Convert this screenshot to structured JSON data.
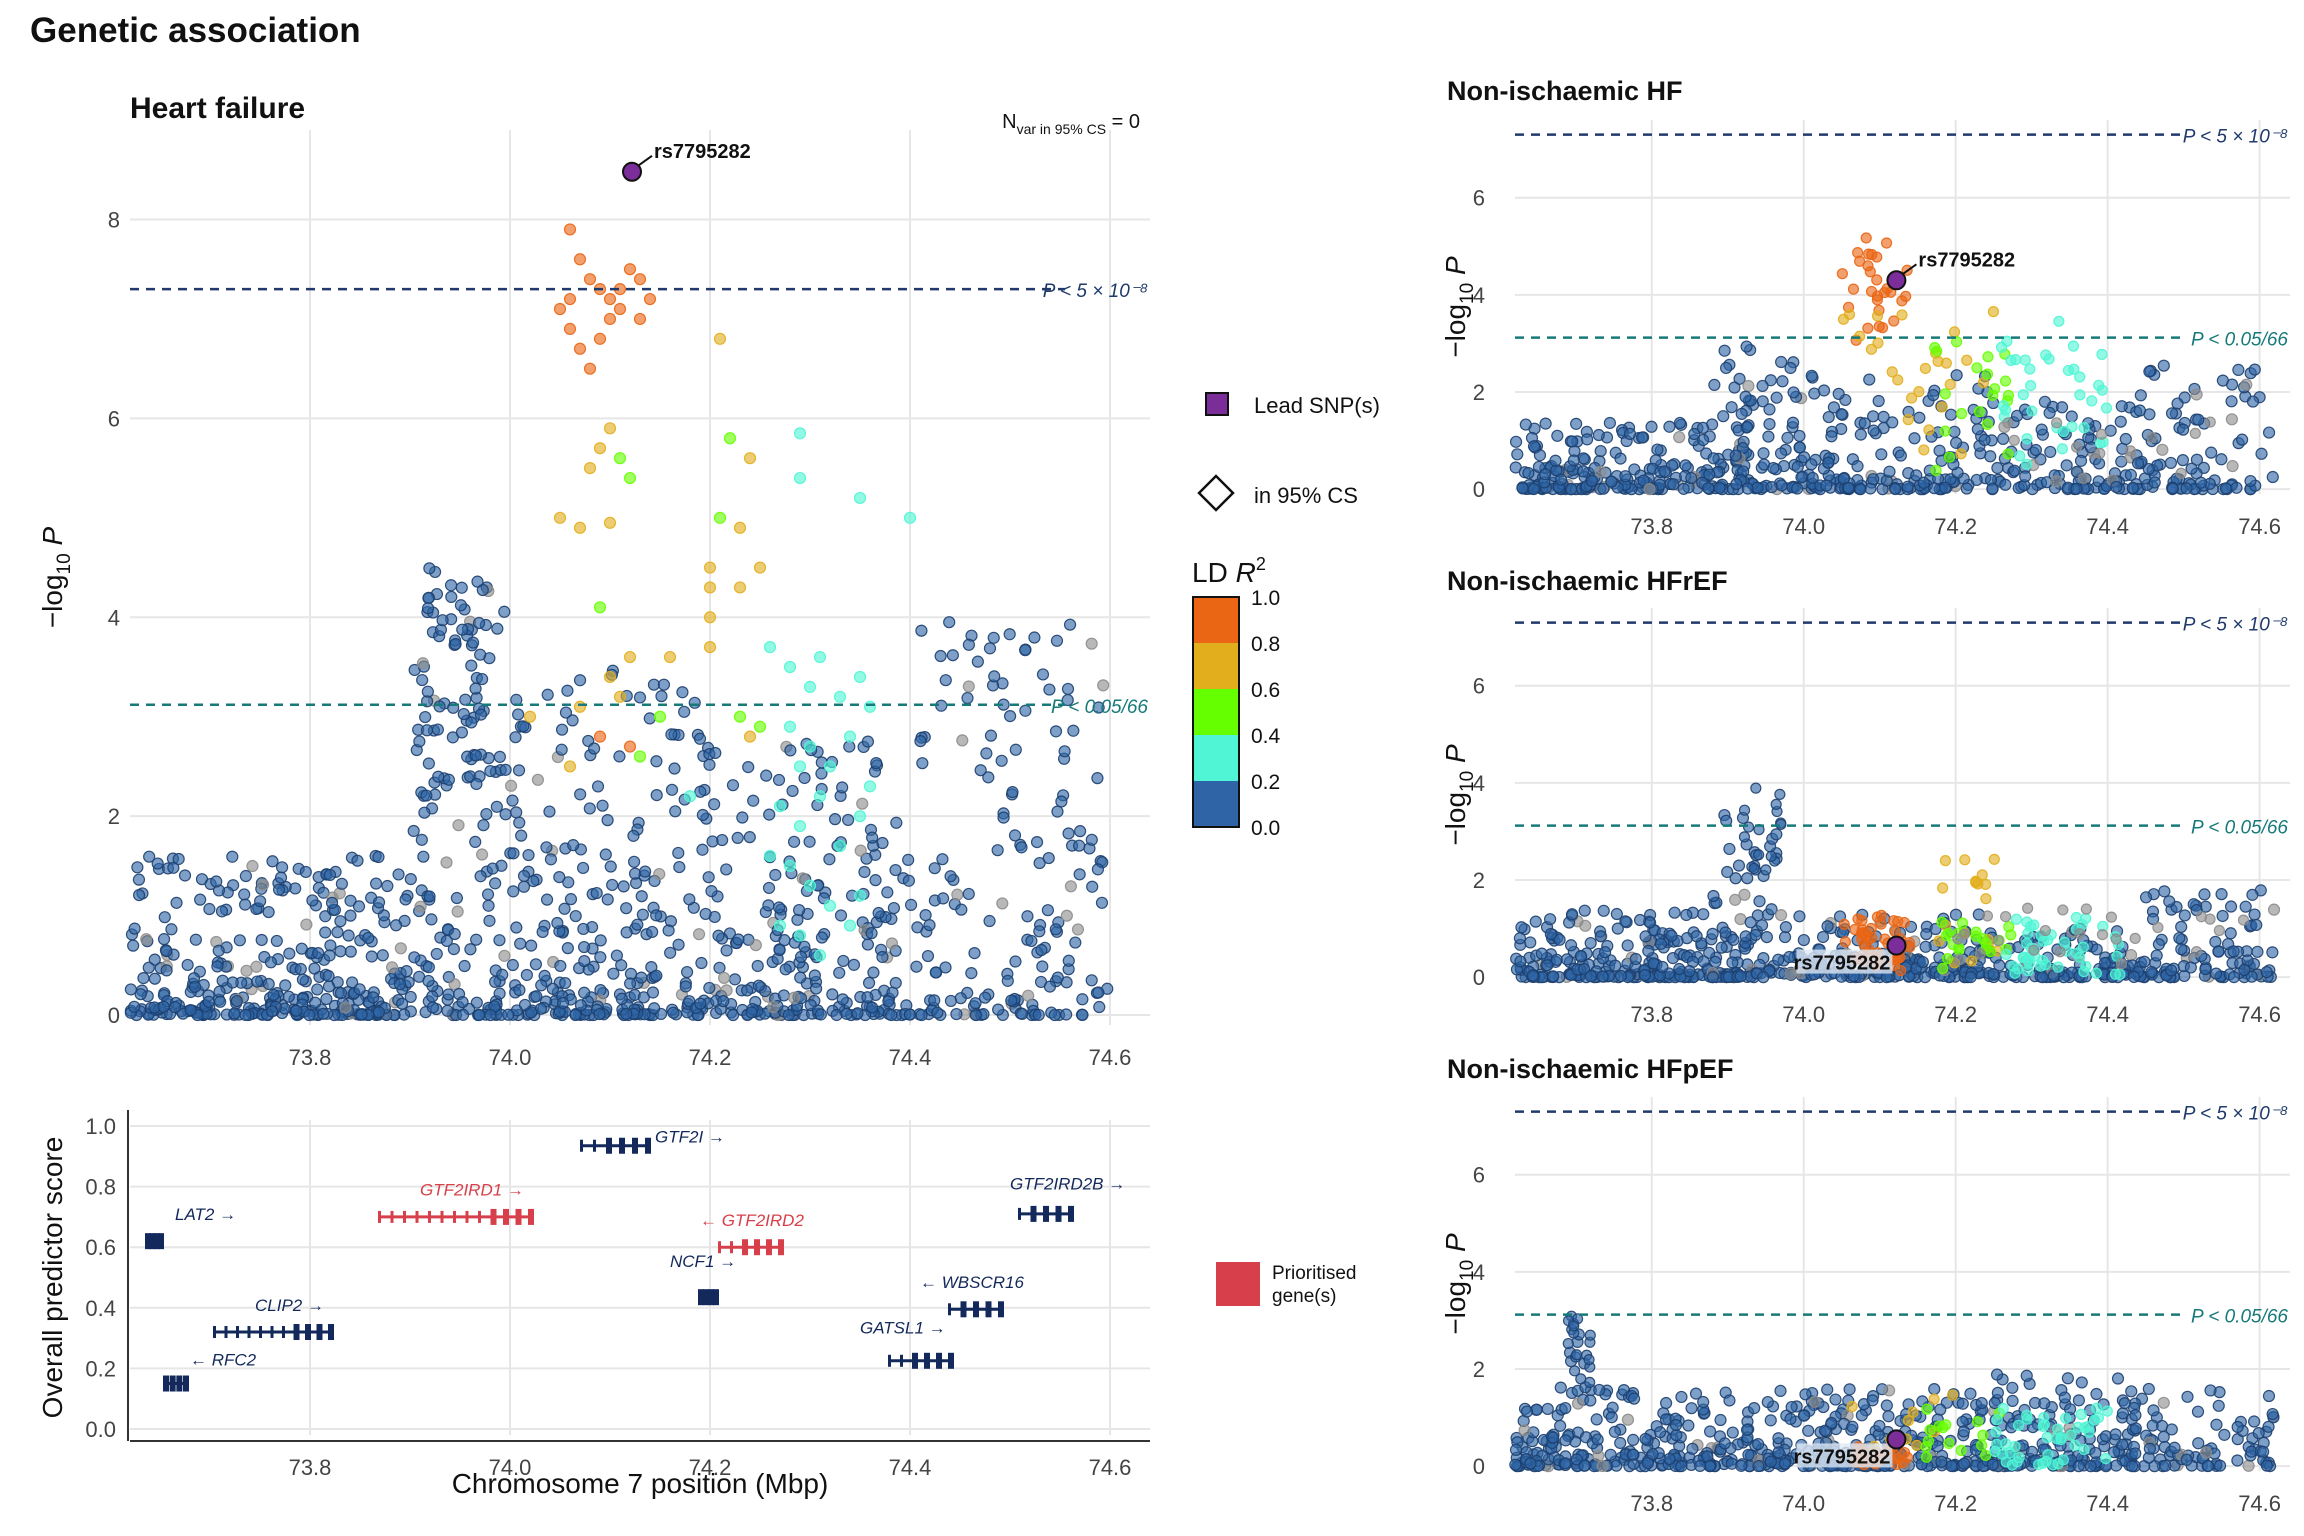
{
  "figure_title": "Genetic association",
  "colors": {
    "grid": "#e6e6e6",
    "ld_0": "#2f65a7",
    "ld_02": "#4ff5d5",
    "ld_04": "#66ff00",
    "ld_06": "#e2ae1d",
    "ld_08": "#ea6514",
    "lead": "#7b2d9a",
    "gw_line": "#1f3a6b",
    "bonf_line": "#177a7a",
    "gene_default": "#13295b",
    "gene_prioritised": "#d7404a",
    "no_ld": "#8c8c8c"
  },
  "chart_data": [
    {
      "id": "heart_failure",
      "type": "scatter",
      "title": "Heart failure",
      "annotation": {
        "n_var_main": "N",
        "n_var_sub": "var in 95% CS",
        "n_var_value": " = 0"
      },
      "ylabel": "−log10 P",
      "xlim": [
        73.62,
        74.64
      ],
      "ylim": [
        -0.1,
        8.9
      ],
      "xticks": [
        73.8,
        74.0,
        74.2,
        74.4,
        74.6
      ],
      "xtick_labels": [
        "73.8",
        "74.0",
        "74.2",
        "74.4",
        "74.6"
      ],
      "yticks": [
        0,
        2,
        4,
        6,
        8
      ],
      "ytick_labels": [
        "0",
        "2",
        "4",
        "6",
        "8"
      ],
      "thresholds": [
        {
          "y": 7.3,
          "label": "P < 5 × 10⁻⁸",
          "kind": "genome_wide"
        },
        {
          "y": 3.12,
          "label": "P < 0.05/66",
          "kind": "bonferroni"
        }
      ],
      "lead_snp": {
        "name": "rs7795282",
        "x": 74.122,
        "y": 8.48
      },
      "points_note": "approximate: dense cloud of ~1200 variants, LD-coloured",
      "background_density": [
        {
          "from": 73.62,
          "to": 73.9,
          "weight": 1.0,
          "ymax": 1.6
        },
        {
          "from": 73.9,
          "to": 74.0,
          "weight": 1.3,
          "ymax": 4.5
        },
        {
          "from": 74.0,
          "to": 74.2,
          "weight": 1.1,
          "ymax": 3.5
        },
        {
          "from": 74.2,
          "to": 74.4,
          "weight": 1.0,
          "ymax": 2.8
        },
        {
          "from": 74.4,
          "to": 74.6,
          "weight": 0.6,
          "ymax": 4.0
        }
      ],
      "cluster_points": [
        {
          "x": 74.06,
          "y": 7.9,
          "ld": 0.9
        },
        {
          "x": 74.07,
          "y": 7.6,
          "ld": 0.9
        },
        {
          "x": 74.08,
          "y": 7.4,
          "ld": 0.85
        },
        {
          "x": 74.09,
          "y": 7.3,
          "ld": 0.9
        },
        {
          "x": 74.1,
          "y": 7.2,
          "ld": 0.85
        },
        {
          "x": 74.11,
          "y": 7.3,
          "ld": 0.9
        },
        {
          "x": 74.12,
          "y": 7.5,
          "ld": 0.88
        },
        {
          "x": 74.13,
          "y": 7.4,
          "ld": 0.82
        },
        {
          "x": 74.14,
          "y": 7.2,
          "ld": 0.85
        },
        {
          "x": 74.05,
          "y": 7.1,
          "ld": 0.9
        },
        {
          "x": 74.06,
          "y": 6.9,
          "ld": 0.85
        },
        {
          "x": 74.07,
          "y": 6.7,
          "ld": 0.82
        },
        {
          "x": 74.08,
          "y": 6.5,
          "ld": 0.84
        },
        {
          "x": 74.09,
          "y": 6.8,
          "ld": 0.86
        },
        {
          "x": 74.1,
          "y": 7.0,
          "ld": 0.9
        },
        {
          "x": 74.11,
          "y": 7.1,
          "ld": 0.8
        },
        {
          "x": 74.13,
          "y": 7.0,
          "ld": 0.84
        },
        {
          "x": 74.06,
          "y": 7.2,
          "ld": 0.88
        },
        {
          "x": 74.21,
          "y": 6.8,
          "ld": 0.65
        },
        {
          "x": 74.1,
          "y": 5.9,
          "ld": 0.65
        },
        {
          "x": 74.09,
          "y": 5.7,
          "ld": 0.62
        },
        {
          "x": 74.08,
          "y": 5.5,
          "ld": 0.66
        },
        {
          "x": 74.11,
          "y": 5.6,
          "ld": 0.5
        },
        {
          "x": 74.12,
          "y": 5.4,
          "ld": 0.45
        },
        {
          "x": 74.05,
          "y": 5.0,
          "ld": 0.7
        },
        {
          "x": 74.07,
          "y": 4.9,
          "ld": 0.68
        },
        {
          "x": 74.1,
          "y": 4.95,
          "ld": 0.64
        },
        {
          "x": 74.22,
          "y": 5.8,
          "ld": 0.5
        },
        {
          "x": 74.24,
          "y": 5.6,
          "ld": 0.6
        },
        {
          "x": 74.21,
          "y": 5.0,
          "ld": 0.45
        },
        {
          "x": 74.23,
          "y": 4.9,
          "ld": 0.62
        },
        {
          "x": 74.2,
          "y": 4.5,
          "ld": 0.66
        },
        {
          "x": 74.25,
          "y": 4.5,
          "ld": 0.64
        },
        {
          "x": 74.2,
          "y": 4.3,
          "ld": 0.62
        },
        {
          "x": 74.23,
          "y": 4.3,
          "ld": 0.6
        },
        {
          "x": 74.2,
          "y": 4.0,
          "ld": 0.6
        },
        {
          "x": 74.29,
          "y": 5.85,
          "ld": 0.3
        },
        {
          "x": 74.29,
          "y": 5.4,
          "ld": 0.3
        },
        {
          "x": 74.35,
          "y": 5.2,
          "ld": 0.3
        },
        {
          "x": 74.4,
          "y": 5.0,
          "ld": 0.25
        },
        {
          "x": 74.09,
          "y": 4.1,
          "ld": 0.5
        },
        {
          "x": 74.12,
          "y": 3.6,
          "ld": 0.6
        },
        {
          "x": 74.16,
          "y": 3.6,
          "ld": 0.62
        },
        {
          "x": 74.2,
          "y": 3.7,
          "ld": 0.62
        },
        {
          "x": 74.1,
          "y": 3.4,
          "ld": 0.68
        },
        {
          "x": 74.11,
          "y": 3.2,
          "ld": 0.66
        },
        {
          "x": 74.07,
          "y": 3.1,
          "ld": 0.7
        },
        {
          "x": 74.09,
          "y": 2.8,
          "ld": 0.8
        },
        {
          "x": 74.12,
          "y": 2.7,
          "ld": 0.82
        },
        {
          "x": 74.06,
          "y": 2.5,
          "ld": 0.7
        },
        {
          "x": 74.02,
          "y": 3.0,
          "ld": 0.62
        },
        {
          "x": 74.13,
          "y": 2.6,
          "ld": 0.5
        },
        {
          "x": 74.15,
          "y": 3.0,
          "ld": 0.45
        },
        {
          "x": 74.23,
          "y": 3.0,
          "ld": 0.45
        },
        {
          "x": 74.24,
          "y": 2.8,
          "ld": 0.65
        },
        {
          "x": 74.25,
          "y": 2.9,
          "ld": 0.45
        }
      ],
      "cyan_points": [
        {
          "x": 74.26,
          "y": 3.7
        },
        {
          "x": 74.28,
          "y": 3.5
        },
        {
          "x": 74.3,
          "y": 3.3
        },
        {
          "x": 74.31,
          "y": 3.6
        },
        {
          "x": 74.33,
          "y": 3.2
        },
        {
          "x": 74.35,
          "y": 3.4
        },
        {
          "x": 74.36,
          "y": 3.1
        },
        {
          "x": 74.28,
          "y": 2.9
        },
        {
          "x": 74.3,
          "y": 2.7
        },
        {
          "x": 74.32,
          "y": 2.5
        },
        {
          "x": 74.34,
          "y": 2.8
        },
        {
          "x": 74.36,
          "y": 2.3
        },
        {
          "x": 74.27,
          "y": 2.1
        },
        {
          "x": 74.29,
          "y": 1.9
        },
        {
          "x": 74.31,
          "y": 2.2
        },
        {
          "x": 74.33,
          "y": 1.7
        },
        {
          "x": 74.35,
          "y": 2.0
        },
        {
          "x": 74.28,
          "y": 1.5
        },
        {
          "x": 74.3,
          "y": 1.3
        },
        {
          "x": 74.32,
          "y": 1.1
        },
        {
          "x": 74.27,
          "y": 0.9
        },
        {
          "x": 74.29,
          "y": 0.8
        },
        {
          "x": 74.31,
          "y": 0.6
        },
        {
          "x": 74.35,
          "y": 1.2
        },
        {
          "x": 74.18,
          "y": 2.2
        },
        {
          "x": 74.26,
          "y": 1.6
        },
        {
          "x": 74.34,
          "y": 0.9
        },
        {
          "x": 74.29,
          "y": 2.5
        }
      ]
    },
    {
      "id": "non_ischaemic_hf",
      "type": "scatter",
      "title": "Non-ischaemic HF",
      "ylabel": "−log10 P",
      "xlim": [
        73.62,
        74.64
      ],
      "ylim": [
        -0.1,
        7.6
      ],
      "xticks": [
        73.8,
        74.0,
        74.2,
        74.4,
        74.6
      ],
      "xtick_labels": [
        "73.8",
        "74.0",
        "74.2",
        "74.4",
        "74.6"
      ],
      "yticks": [
        0,
        2,
        4,
        6
      ],
      "ytick_labels": [
        "0",
        "2",
        "4",
        "6"
      ],
      "thresholds": [
        {
          "y": 7.3,
          "label": "P < 5 × 10⁻⁸",
          "kind": "genome_wide"
        },
        {
          "y": 3.12,
          "label": "P < 0.05/66",
          "kind": "bonferroni"
        }
      ],
      "lead_snp": {
        "name": "rs7795282",
        "x": 74.122,
        "y": 4.3,
        "label_side": "right"
      },
      "points_note": "approximate"
    },
    {
      "id": "non_ischaemic_hfref",
      "type": "scatter",
      "title": "Non-ischaemic HFrEF",
      "ylabel": "−log10 P",
      "xlim": [
        73.62,
        74.64
      ],
      "ylim": [
        -0.1,
        7.6
      ],
      "xticks": [
        73.8,
        74.0,
        74.2,
        74.4,
        74.6
      ],
      "xtick_labels": [
        "73.8",
        "74.0",
        "74.2",
        "74.4",
        "74.6"
      ],
      "yticks": [
        0,
        2,
        4,
        6
      ],
      "ytick_labels": [
        "0",
        "2",
        "4",
        "6"
      ],
      "thresholds": [
        {
          "y": 7.3,
          "label": "P < 5 × 10⁻⁸",
          "kind": "genome_wide"
        },
        {
          "y": 3.12,
          "label": "P < 0.05/66",
          "kind": "bonferroni"
        }
      ],
      "lead_snp": {
        "name": "rs7795282",
        "x": 74.122,
        "y": 0.65,
        "label_side": "left"
      },
      "points_note": "approximate"
    },
    {
      "id": "non_ischaemic_hfpef",
      "type": "scatter",
      "title": "Non-ischaemic HFpEF",
      "ylabel": "−log10 P",
      "xlim": [
        73.62,
        74.64
      ],
      "ylim": [
        -0.1,
        7.6
      ],
      "xticks": [
        73.8,
        74.0,
        74.2,
        74.4,
        74.6
      ],
      "xtick_labels": [
        "73.8",
        "74.0",
        "74.2",
        "74.4",
        "74.6"
      ],
      "yticks": [
        0,
        2,
        4,
        6
      ],
      "ytick_labels": [
        "0",
        "2",
        "4",
        "6"
      ],
      "thresholds": [
        {
          "y": 7.3,
          "label": "P < 5 × 10⁻⁸",
          "kind": "genome_wide"
        },
        {
          "y": 3.12,
          "label": "P < 0.05/66",
          "kind": "bonferroni"
        }
      ],
      "lead_snp": {
        "name": "rs7795282",
        "x": 74.122,
        "y": 0.55,
        "label_side": "left"
      },
      "points_note": "approximate"
    },
    {
      "id": "gene_track",
      "type": "scatter",
      "ylabel": "Overall predictor score",
      "xlabel": "Chromosome 7 position (Mbp)",
      "xlim": [
        73.62,
        74.64
      ],
      "ylim": [
        -0.02,
        1.02
      ],
      "xticks": [
        73.8,
        74.0,
        74.2,
        74.4,
        74.6
      ],
      "xtick_labels": [
        "73.8",
        "74.0",
        "74.2",
        "74.4",
        "74.6"
      ],
      "yticks": [
        0.0,
        0.2,
        0.4,
        0.6,
        0.8,
        1.0
      ],
      "ytick_labels": [
        "0.0",
        "0.2",
        "0.4",
        "0.6",
        "0.8",
        "1.0"
      ],
      "genes": [
        {
          "name": "LAT2",
          "label": "LAT2 →",
          "start": 73.637,
          "end": 73.65,
          "score": 0.62,
          "prioritised": false,
          "label_x": 73.665,
          "label_anchor": "start",
          "label_dy": 0.07
        },
        {
          "name": "RFC2",
          "label": "← RFC2",
          "start": 73.655,
          "end": 73.675,
          "score": 0.15,
          "prioritised": false,
          "label_x": 73.68,
          "label_anchor": "start",
          "label_dy": 0.06
        },
        {
          "name": "CLIP2",
          "label": "CLIP2 →",
          "start": 73.705,
          "end": 73.82,
          "score": 0.32,
          "prioritised": false,
          "label_x": 73.745,
          "label_anchor": "start",
          "label_dy": 0.07
        },
        {
          "name": "GTF2IRD1",
          "label": "GTF2IRD1 →",
          "start": 73.87,
          "end": 74.02,
          "score": 0.7,
          "prioritised": true,
          "label_x": 73.91,
          "label_anchor": "start",
          "label_dy": 0.07
        },
        {
          "name": "GTF2I",
          "label": "GTF2I →",
          "start": 74.072,
          "end": 74.137,
          "score": 0.935,
          "prioritised": false,
          "label_x": 74.145,
          "label_anchor": "start",
          "label_dy": 0.01
        },
        {
          "name": "NCF1",
          "label": "NCF1 →",
          "start": 74.19,
          "end": 74.205,
          "score": 0.435,
          "prioritised": false,
          "label_x": 74.16,
          "label_anchor": "start",
          "label_dy": 0.1
        },
        {
          "name": "GTF2IRD2",
          "label": "← GTF2IRD2",
          "start": 74.21,
          "end": 74.27,
          "score": 0.6,
          "prioritised": true,
          "label_x": 74.19,
          "label_anchor": "start",
          "label_dy": 0.07
        },
        {
          "name": "GATSL1",
          "label": "GATSL1 →",
          "start": 74.38,
          "end": 74.44,
          "score": 0.225,
          "prioritised": false,
          "label_x": 74.35,
          "label_anchor": "start",
          "label_dy": 0.09
        },
        {
          "name": "WBSCR16",
          "label": "← WBSCR16",
          "start": 74.44,
          "end": 74.49,
          "score": 0.395,
          "prioritised": false,
          "label_x": 74.41,
          "label_anchor": "start",
          "label_dy": 0.07
        },
        {
          "name": "GTF2IRD2B",
          "label": "GTF2IRD2B →",
          "start": 74.51,
          "end": 74.56,
          "score": 0.71,
          "prioritised": false,
          "label_x": 74.5,
          "label_anchor": "start",
          "label_dy": 0.08
        }
      ]
    }
  ],
  "legend": {
    "lead_label": "Lead SNP(s)",
    "cs_label": "in 95% CS",
    "ld_title": "LD ",
    "ld_title_var": "R",
    "ld_title_sup": "2",
    "ld_ticks": [
      "1.0",
      "0.8",
      "0.6",
      "0.4",
      "0.2",
      "0.0"
    ],
    "prioritised_label_1": "Prioritised",
    "prioritised_label_2": "gene(s)"
  }
}
